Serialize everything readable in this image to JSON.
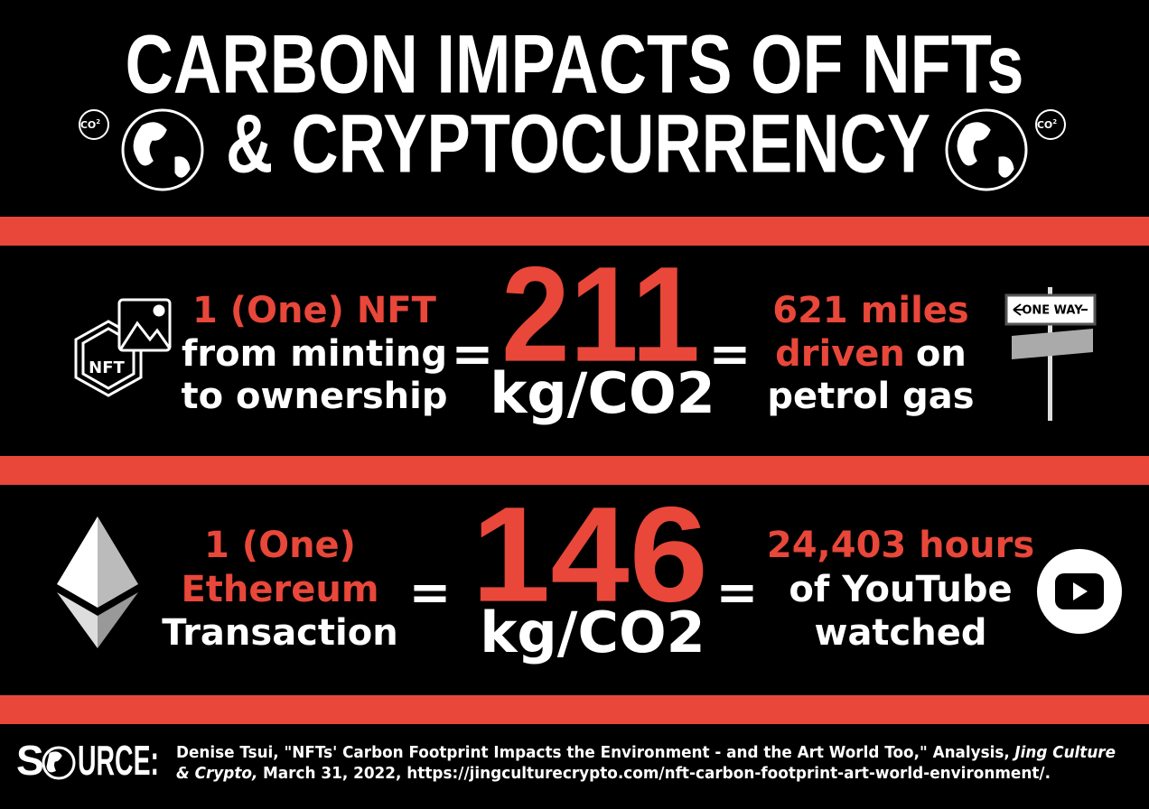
{
  "title": {
    "line1": "CARBON IMPACTS OF NFTs",
    "line2": "& CRYPTOCURRENCY",
    "badge": {
      "base": "CO",
      "sup": "2"
    }
  },
  "rows": [
    {
      "icon_text": "NFT",
      "left": [
        "1 (One) NFT",
        "from minting",
        "to ownership"
      ],
      "equals": "=",
      "amount": "211",
      "unit": "kg/CO2",
      "right": {
        "line1": "621 miles",
        "line2_red": "driven",
        "line2_rest": "on",
        "line3": "petrol gas"
      },
      "sign_text": "ONE WAY"
    },
    {
      "left": [
        "1 (One)",
        "Ethereum",
        "Transaction"
      ],
      "equals": "=",
      "amount": "146",
      "unit": "kg/CO2",
      "right": {
        "line1": "24,403 hours",
        "line2": "of YouTube",
        "line3": "watched"
      }
    }
  ],
  "source": {
    "label_start": "S",
    "label_end": "URCE:",
    "line1": "Denise Tsui, \"NFTs' Carbon Footprint Impacts the Environment - and the Art World Too,\" Analysis,",
    "line1_italic": "Jing Culture",
    "line2_italic": "& Crypto,",
    "line2": "March 31, 2022, https://jingculturecrypto.com/nft-carbon-footprint-art-world-environment/."
  }
}
